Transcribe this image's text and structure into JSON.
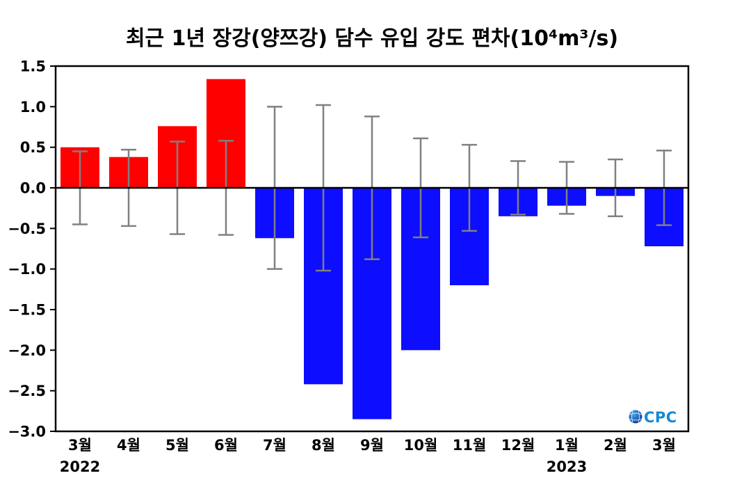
{
  "chart_data": {
    "type": "bar",
    "title": "최근 1년 장강(양쯔강) 담수 유입 강도 편차(10⁴m³/s)",
    "categories": [
      "3월",
      "4월",
      "5월",
      "6월",
      "7월",
      "8월",
      "9월",
      "10월",
      "11월",
      "12월",
      "1월",
      "2월",
      "3월"
    ],
    "values": [
      0.5,
      0.38,
      0.76,
      1.34,
      -0.62,
      -2.42,
      -2.85,
      -2.0,
      -1.2,
      -0.35,
      -0.22,
      -0.1,
      -0.72
    ],
    "error_bars": [
      0.45,
      0.47,
      0.57,
      0.58,
      1.0,
      1.02,
      0.88,
      0.61,
      0.53,
      0.33,
      0.32,
      0.35,
      0.46
    ],
    "year_labels": [
      {
        "index": 0,
        "label": "2022"
      },
      {
        "index": 10,
        "label": "2023"
      }
    ],
    "xlabel": "",
    "ylabel": "",
    "ylim": [
      -3.0,
      1.5
    ],
    "ytick_step": 0.5,
    "grid": false,
    "colors": {
      "positive": "#ff0000",
      "negative": "#0d0dff",
      "error": "#808080",
      "zero_line": "#000000",
      "frame": "#000000",
      "tick_text": "#000000"
    }
  },
  "logo": {
    "text": "OCPC",
    "letters_color": "#1789d6",
    "globe_color": "#0a2f8e"
  }
}
